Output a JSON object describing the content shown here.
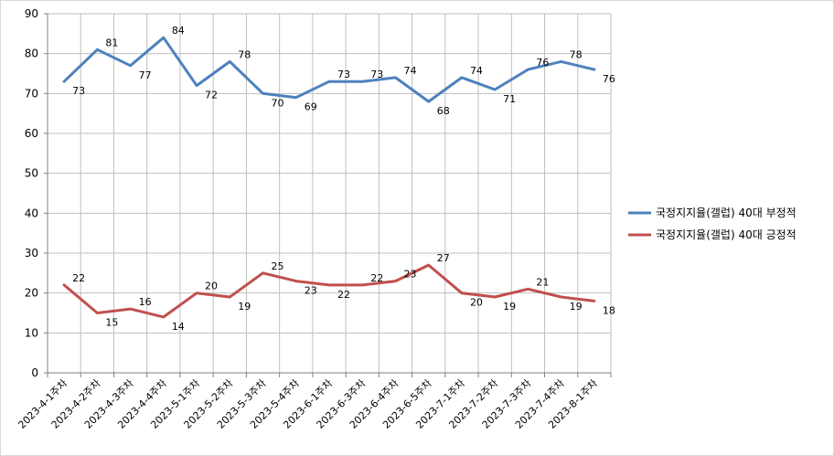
{
  "chart_data": {
    "type": "line",
    "title": "",
    "xlabel": "",
    "ylabel": "",
    "ylim": [
      0,
      90
    ],
    "y_ticks": [
      0,
      10,
      20,
      30,
      40,
      50,
      60,
      70,
      80,
      90
    ],
    "grid": "both",
    "legend_position": "right",
    "categories": [
      "2023-4-1주차",
      "2023-4-2주차",
      "2023-4-3주차",
      "2023-4-4주차",
      "2023-5-1주차",
      "2023-5-2주차",
      "2023-5-3주차",
      "2023-5-4주차",
      "2023-6-1주차",
      "2023-6-3주차",
      "2023-6-4주차",
      "2023-6-5주차",
      "2023-7-1주차",
      "2023-7-2주차",
      "2023-7-3주차",
      "2023-7-4주차",
      "2023-8-1주차"
    ],
    "series": [
      {
        "name": "국정지지율(갤럽) 40대 부정적",
        "color": "#4f81bd",
        "values": [
          73,
          81,
          77,
          84,
          72,
          78,
          70,
          69,
          73,
          73,
          74,
          68,
          74,
          71,
          76,
          78,
          76
        ]
      },
      {
        "name": "국정지지율(갤럽) 40대 긍정적",
        "color": "#c0504d",
        "values": [
          22,
          15,
          16,
          14,
          20,
          19,
          25,
          23,
          22,
          22,
          23,
          27,
          20,
          19,
          21,
          19,
          18
        ]
      }
    ]
  }
}
